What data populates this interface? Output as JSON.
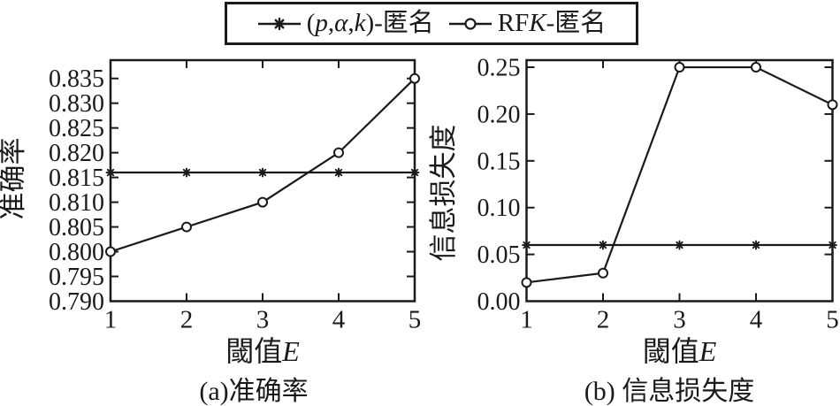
{
  "figure": {
    "ink_color": "#1a1a1a",
    "background_color": "#ffffff"
  },
  "legend": {
    "items": [
      {
        "marker": "asterisk",
        "label": "(p,α,k)-匿名",
        "segments": [
          {
            "text": "(",
            "italic": false
          },
          {
            "text": "p",
            "italic": true
          },
          {
            "text": ",",
            "italic": false
          },
          {
            "text": "α",
            "italic": true
          },
          {
            "text": ",",
            "italic": false
          },
          {
            "text": "k",
            "italic": true
          },
          {
            "text": ")-匿名",
            "italic": false
          }
        ]
      },
      {
        "marker": "circle",
        "label": "RFK-匿名",
        "segments": [
          {
            "text": "RF",
            "italic": false
          },
          {
            "text": "K",
            "italic": true
          },
          {
            "text": "-匿名",
            "italic": false
          }
        ]
      }
    ]
  },
  "chart_data": [
    {
      "type": "line",
      "panel": "a",
      "caption": "(a)准确率",
      "ylabel": "准确率",
      "xlabel": "閾值E",
      "xlabel_segments": [
        {
          "text": "閾值",
          "italic": false
        },
        {
          "text": "E",
          "italic": true
        }
      ],
      "x": [
        1,
        2,
        3,
        4,
        5
      ],
      "xlim": [
        1,
        5
      ],
      "ylim": [
        0.79,
        0.8387
      ],
      "xticks": [
        1,
        2,
        3,
        4,
        5
      ],
      "xtick_labels": [
        "1",
        "2",
        "3",
        "4",
        "5"
      ],
      "yticks": [
        0.79,
        0.795,
        0.8,
        0.805,
        0.81,
        0.815,
        0.82,
        0.825,
        0.83,
        0.835
      ],
      "ytick_labels": [
        "0.790",
        "0.795",
        "0.800",
        "0.805",
        "0.810",
        "0.815",
        "0.820",
        "0.825",
        "0.830",
        "0.835"
      ],
      "grid": false,
      "legend_position": "top-outside",
      "series": [
        {
          "name": "(p,α,k)-匿名",
          "marker": "asterisk",
          "values": [
            0.816,
            0.816,
            0.816,
            0.816,
            0.816
          ]
        },
        {
          "name": "RFK-匿名",
          "marker": "circle",
          "values": [
            0.8,
            0.805,
            0.81,
            0.82,
            0.835
          ]
        }
      ]
    },
    {
      "type": "line",
      "panel": "b",
      "caption": "(b) 信息损失度",
      "ylabel": "信息损失度",
      "xlabel": "閾值E",
      "xlabel_segments": [
        {
          "text": "閾值",
          "italic": false
        },
        {
          "text": "E",
          "italic": true
        }
      ],
      "x": [
        1,
        2,
        3,
        4,
        5
      ],
      "xlim": [
        1,
        5
      ],
      "ylim": [
        0,
        0.2576
      ],
      "xticks": [
        1,
        2,
        3,
        4,
        5
      ],
      "xtick_labels": [
        "1",
        "2",
        "3",
        "4",
        "5"
      ],
      "yticks": [
        0,
        0.05,
        0.1,
        0.15,
        0.2,
        0.25
      ],
      "ytick_labels": [
        "0.00",
        "0.05",
        "0.10",
        "0.15",
        "0.20",
        "0.25"
      ],
      "grid": false,
      "legend_position": "top-outside",
      "series": [
        {
          "name": "(p,α,k)-匿名",
          "marker": "asterisk",
          "values": [
            0.06,
            0.06,
            0.06,
            0.06,
            0.06
          ]
        },
        {
          "name": "RFK-匿名",
          "marker": "circle",
          "values": [
            0.02,
            0.03,
            0.25,
            0.25,
            0.21
          ]
        }
      ]
    }
  ]
}
